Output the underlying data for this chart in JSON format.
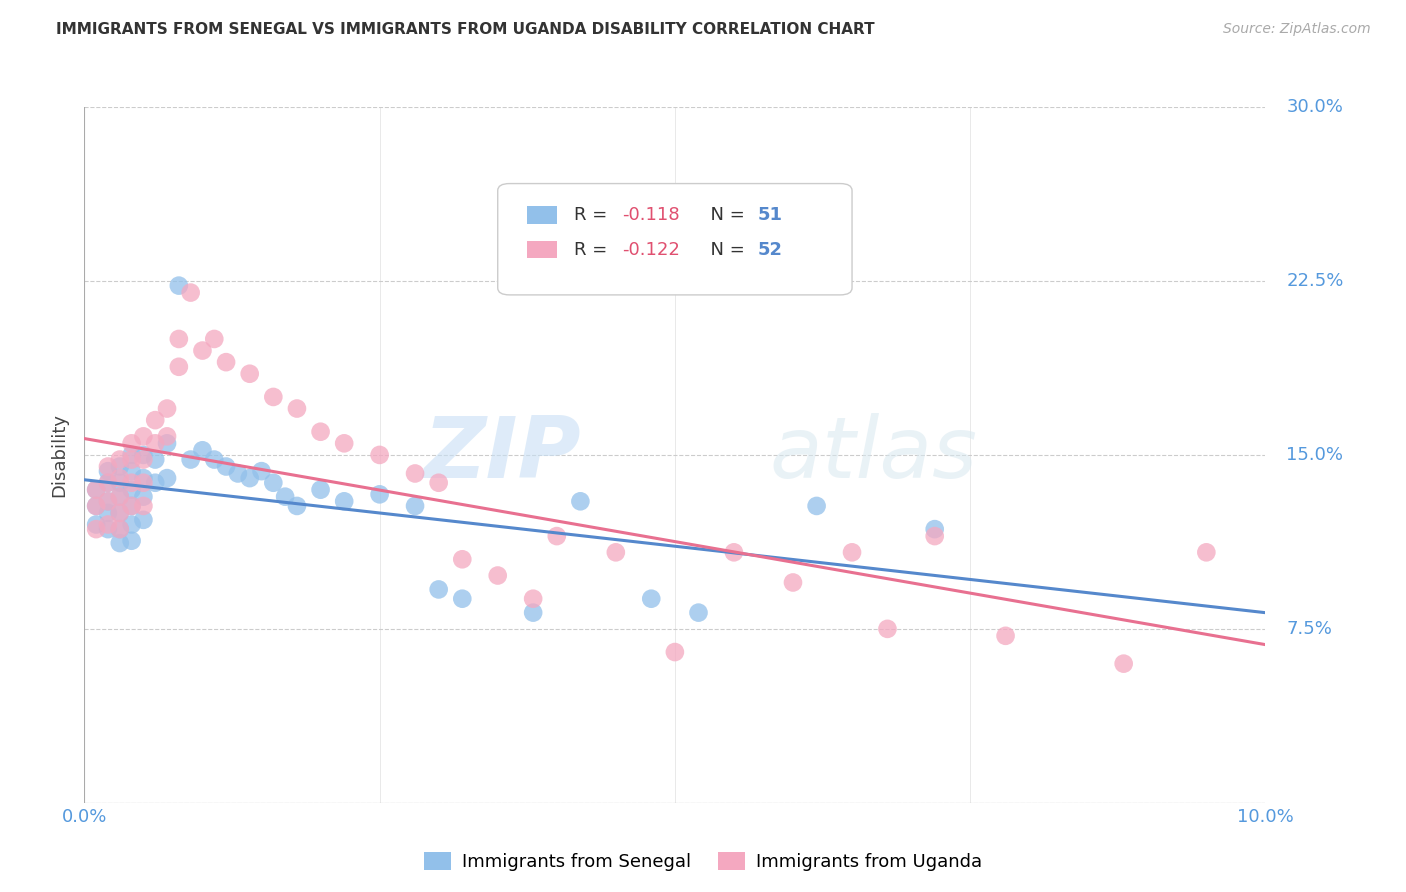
{
  "title": "IMMIGRANTS FROM SENEGAL VS IMMIGRANTS FROM UGANDA DISABILITY CORRELATION CHART",
  "source": "Source: ZipAtlas.com",
  "ylabel": "Disability",
  "yticks": [
    0.0,
    0.075,
    0.15,
    0.225,
    0.3
  ],
  "ytick_labels": [
    "",
    "7.5%",
    "15.0%",
    "22.5%",
    "30.0%"
  ],
  "xlim": [
    0.0,
    0.1
  ],
  "ylim": [
    0.0,
    0.3
  ],
  "legend_r_senegal": "R = -0.118",
  "legend_n_senegal": "N = 51",
  "legend_r_uganda": "R = -0.122",
  "legend_n_uganda": "N = 52",
  "senegal_color": "#92C0EA",
  "uganda_color": "#F4A8C0",
  "senegal_line_color": "#5588CC",
  "uganda_line_color": "#E87090",
  "watermark_zip": "ZIP",
  "watermark_atlas": "atlas",
  "background_color": "#ffffff",
  "grid_color": "#cccccc",
  "senegal_x": [
    0.001,
    0.001,
    0.001,
    0.002,
    0.002,
    0.002,
    0.002,
    0.002,
    0.003,
    0.003,
    0.003,
    0.003,
    0.003,
    0.003,
    0.004,
    0.004,
    0.004,
    0.004,
    0.004,
    0.004,
    0.005,
    0.005,
    0.005,
    0.005,
    0.006,
    0.006,
    0.007,
    0.007,
    0.008,
    0.009,
    0.01,
    0.011,
    0.012,
    0.013,
    0.014,
    0.015,
    0.016,
    0.017,
    0.018,
    0.02,
    0.022,
    0.025,
    0.028,
    0.03,
    0.032,
    0.038,
    0.042,
    0.048,
    0.052,
    0.062,
    0.072
  ],
  "senegal_y": [
    0.135,
    0.128,
    0.12,
    0.143,
    0.138,
    0.13,
    0.125,
    0.118,
    0.145,
    0.138,
    0.132,
    0.125,
    0.118,
    0.112,
    0.15,
    0.143,
    0.135,
    0.128,
    0.12,
    0.113,
    0.15,
    0.14,
    0.132,
    0.122,
    0.148,
    0.138,
    0.155,
    0.14,
    0.223,
    0.148,
    0.152,
    0.148,
    0.145,
    0.142,
    0.14,
    0.143,
    0.138,
    0.132,
    0.128,
    0.135,
    0.13,
    0.133,
    0.128,
    0.092,
    0.088,
    0.082,
    0.13,
    0.088,
    0.082,
    0.128,
    0.118
  ],
  "uganda_x": [
    0.001,
    0.001,
    0.001,
    0.002,
    0.002,
    0.002,
    0.002,
    0.003,
    0.003,
    0.003,
    0.003,
    0.003,
    0.004,
    0.004,
    0.004,
    0.004,
    0.005,
    0.005,
    0.005,
    0.005,
    0.006,
    0.006,
    0.007,
    0.007,
    0.008,
    0.008,
    0.009,
    0.01,
    0.011,
    0.012,
    0.014,
    0.016,
    0.018,
    0.02,
    0.022,
    0.025,
    0.028,
    0.03,
    0.032,
    0.035,
    0.038,
    0.04,
    0.045,
    0.05,
    0.055,
    0.06,
    0.065,
    0.068,
    0.072,
    0.078,
    0.088,
    0.095
  ],
  "uganda_y": [
    0.135,
    0.128,
    0.118,
    0.145,
    0.138,
    0.13,
    0.12,
    0.148,
    0.14,
    0.132,
    0.125,
    0.118,
    0.155,
    0.148,
    0.138,
    0.128,
    0.158,
    0.148,
    0.138,
    0.128,
    0.165,
    0.155,
    0.17,
    0.158,
    0.2,
    0.188,
    0.22,
    0.195,
    0.2,
    0.19,
    0.185,
    0.175,
    0.17,
    0.16,
    0.155,
    0.15,
    0.142,
    0.138,
    0.105,
    0.098,
    0.088,
    0.115,
    0.108,
    0.065,
    0.108,
    0.095,
    0.108,
    0.075,
    0.115,
    0.072,
    0.06,
    0.108
  ]
}
